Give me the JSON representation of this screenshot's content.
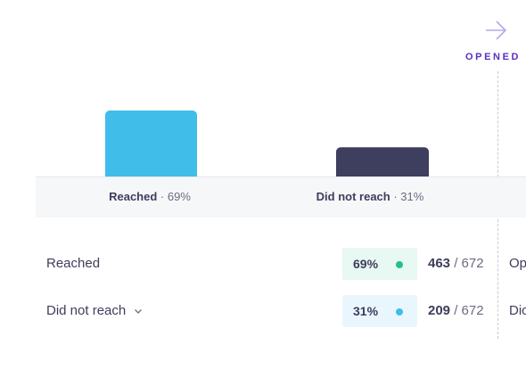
{
  "stage": {
    "label": "OPENED",
    "icon": "arrow-right-icon",
    "color": "#5a2fc2"
  },
  "chart_data": {
    "type": "bar",
    "categories": [
      "Reached",
      "Did not reach"
    ],
    "values": [
      69,
      31
    ],
    "colors": [
      "#40bde8",
      "#3e3e5e"
    ],
    "labels": [
      {
        "name": "Reached",
        "pct": "· 69%"
      },
      {
        "name": "Did not reach",
        "pct": "· 31%"
      }
    ]
  },
  "rows": [
    {
      "name": "Reached",
      "pct": "69%",
      "dot_color": "#25c08a",
      "pill_bg": "#e8f8f3",
      "count": "463",
      "total": " / 672",
      "next": "Op",
      "has_chevron": false
    },
    {
      "name": "Did not reach",
      "pct": "31%",
      "dot_color": "#40bde8",
      "pill_bg": "#e9f6fd",
      "count": "209",
      "total": " / 672",
      "next": "Dic",
      "has_chevron": true
    }
  ]
}
